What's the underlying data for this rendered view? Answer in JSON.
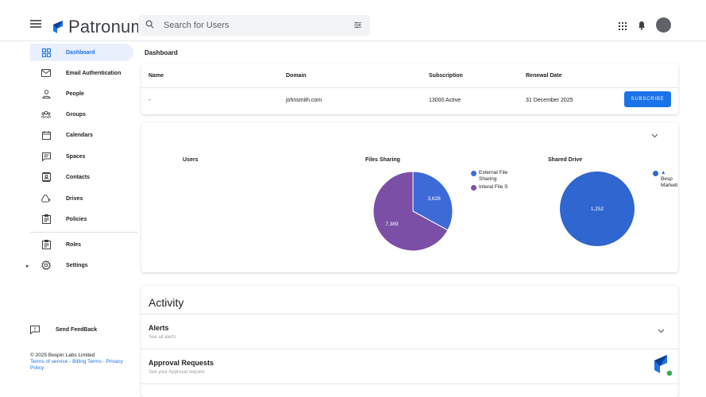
{
  "app": {
    "name": "Patronum"
  },
  "search": {
    "placeholder": "Search for Users"
  },
  "sidebar": {
    "items": [
      {
        "label": "Dashboard",
        "icon": "dashboard-icon",
        "active": true
      },
      {
        "label": "Email Authentication",
        "icon": "email-icon"
      },
      {
        "label": "People",
        "icon": "person-icon"
      },
      {
        "label": "Groups",
        "icon": "groups-icon"
      },
      {
        "label": "Calendars",
        "icon": "calendar-icon"
      },
      {
        "label": "Spaces",
        "icon": "chat-icon"
      },
      {
        "label": "Contacts",
        "icon": "contacts-icon"
      },
      {
        "label": "Drives",
        "icon": "drive-icon"
      },
      {
        "label": "Policies",
        "icon": "policy-icon"
      },
      {
        "label": "Roles",
        "icon": "roles-icon"
      },
      {
        "label": "Settings",
        "icon": "gear-icon"
      }
    ],
    "feedback": "Send FeedBack",
    "copyright": "© 2025 Bespin Labs Limited",
    "links": "Terms of service - Billing Terms - Privacy Policy"
  },
  "main": {
    "title": "Dashboard",
    "subscription_table": {
      "headers": [
        "Name",
        "Domain",
        "Subscription",
        "Renewal Date"
      ],
      "row": [
        "-",
        "johnsmith.com",
        "13000 Active",
        "31 December 2025"
      ],
      "action": "SUBSCRIBE"
    },
    "charts": {
      "users_title": "Users",
      "files_title": "Files Sharing",
      "drive_title": "Shared Drive"
    },
    "activity": {
      "title": "Activity",
      "alerts_title": "Alerts",
      "alerts_sub": "See all alerts",
      "approval_title": "Approval Requests",
      "approval_sub": "See your Approval request"
    }
  },
  "chart_data": [
    {
      "type": "pie",
      "title": "Files Sharing",
      "categories": [
        "External File Sharing",
        "Interal File S"
      ],
      "values": [
        3628,
        7389
      ],
      "value_labels": [
        "3,628",
        "7,389"
      ],
      "colors": [
        "#3e6ad8",
        "#7b4fa6"
      ],
      "legend_position": "right"
    },
    {
      "type": "pie",
      "title": "Shared Drive",
      "categories": [
        "Besp Marketi"
      ],
      "values": [
        1252
      ],
      "value_labels": [
        "1,252"
      ],
      "colors": [
        "#2f66cf"
      ],
      "legend_position": "right"
    }
  ],
  "colors": {
    "accent": "#1a73e8",
    "active_bg": "#e8f0fe",
    "status_online": "#34a853"
  }
}
